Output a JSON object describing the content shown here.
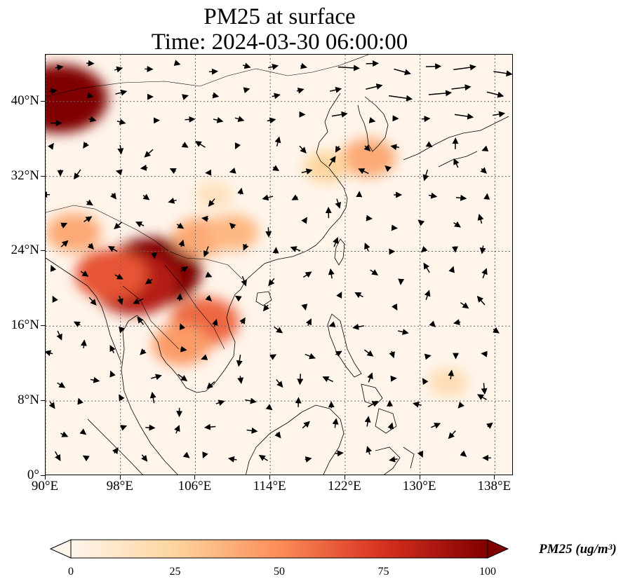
{
  "title": {
    "line1": "PM25 at surface",
    "line2": "Time: 2024-03-30 06:00:00"
  },
  "map": {
    "extent": {
      "lon_min": 90,
      "lon_max": 140,
      "lat_min": 0,
      "lat_max": 45
    },
    "lat_ticks": [
      {
        "value": 0,
        "label": "0°"
      },
      {
        "value": 8,
        "label": "8°N"
      },
      {
        "value": 16,
        "label": "16°N"
      },
      {
        "value": 24,
        "label": "24°N"
      },
      {
        "value": 32,
        "label": "32°N"
      },
      {
        "value": 40,
        "label": "40°N"
      }
    ],
    "lon_ticks": [
      {
        "value": 90,
        "label": "90°E"
      },
      {
        "value": 98,
        "label": "98°E"
      },
      {
        "value": 106,
        "label": "106°E"
      },
      {
        "value": 114,
        "label": "114°E"
      },
      {
        "value": 122,
        "label": "122°E"
      },
      {
        "value": 130,
        "label": "130°E"
      },
      {
        "value": 138,
        "label": "138°E"
      }
    ],
    "gridlines": "dotted",
    "background_color": "#fff5eb",
    "hotspots": [
      {
        "lon": 101.5,
        "lat": 21.8,
        "level": 100
      },
      {
        "lon": 99.5,
        "lat": 20.5,
        "level": 85
      },
      {
        "lon": 97.0,
        "lat": 21.5,
        "level": 65
      },
      {
        "lon": 91.5,
        "lat": 40.3,
        "level": 100
      },
      {
        "lon": 107.0,
        "lat": 16.5,
        "level": 60
      },
      {
        "lon": 106.5,
        "lat": 25.5,
        "level": 40
      },
      {
        "lon": 110.0,
        "lat": 26.0,
        "level": 35
      },
      {
        "lon": 93.0,
        "lat": 26.0,
        "level": 40
      },
      {
        "lon": 124.5,
        "lat": 34.0,
        "level": 40
      },
      {
        "lon": 120.0,
        "lat": 33.0,
        "level": 25
      },
      {
        "lon": 104.5,
        "lat": 14.0,
        "level": 45
      },
      {
        "lon": 133.0,
        "lat": 10.0,
        "level": 18
      },
      {
        "lon": 108.0,
        "lat": 30.0,
        "level": 15
      }
    ]
  },
  "colorbar": {
    "label": "PM25 (ug/m³)",
    "min": 0,
    "max": 100,
    "extend": "both",
    "colormap": "OrRd",
    "stops": [
      "#fff5eb",
      "#fdd49e",
      "#fc8d59",
      "#d7301f",
      "#7f0000"
    ],
    "ticks": [
      {
        "value": 0,
        "label": "0"
      },
      {
        "value": 25,
        "label": "25"
      },
      {
        "value": 50,
        "label": "50"
      },
      {
        "value": 75,
        "label": "75"
      },
      {
        "value": 100,
        "label": "100"
      }
    ]
  }
}
